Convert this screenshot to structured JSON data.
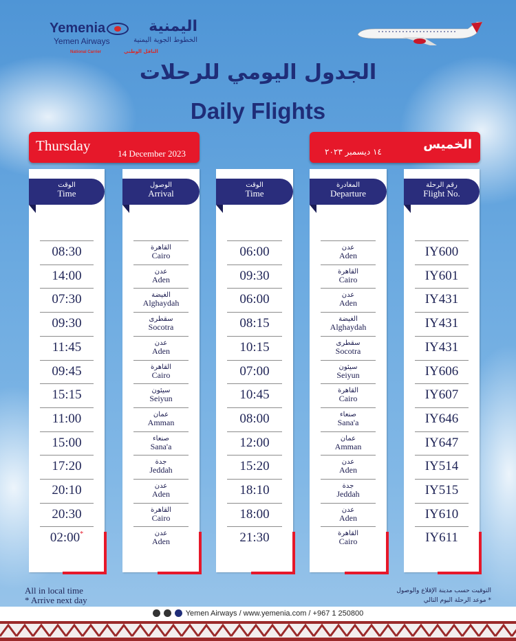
{
  "brand": {
    "name_en": "Yemenia",
    "name_ar": "اليمنية",
    "sub_en": "Yemen Airways",
    "sub_ar": "الخطوط الجوية اليمنية",
    "tag_en": "National Carrier",
    "tag_ar": "الناقل الوطني"
  },
  "title": {
    "ar": "الجدول اليومي للرحلات",
    "en": "Daily Flights"
  },
  "date": {
    "day_en": "Thursday",
    "date_en": "14 December 2023",
    "day_ar": "الخميس",
    "date_ar": "١٤ ديسمبر ٢٠٢٣"
  },
  "columns": {
    "arr_time": {
      "ar": "الوقت",
      "en": "Time"
    },
    "arrival": {
      "ar": "الوصول",
      "en": "Arrival"
    },
    "dep_time": {
      "ar": "الوقت",
      "en": "Time"
    },
    "departure": {
      "ar": "المغادرة",
      "en": "Departure"
    },
    "flight": {
      "ar": "رقم الرحلة",
      "en": "Flight No."
    }
  },
  "flights": [
    {
      "no": "IY600",
      "dep_ar": "عدن",
      "dep": "Aden",
      "dep_time": "06:00",
      "arr_ar": "القاهرة",
      "arr": "Cairo",
      "arr_time": "08:30"
    },
    {
      "no": "IY601",
      "dep_ar": "القاهرة",
      "dep": "Cairo",
      "dep_time": "09:30",
      "arr_ar": "عدن",
      "arr": "Aden",
      "arr_time": "14:00"
    },
    {
      "no": "IY431",
      "dep_ar": "عدن",
      "dep": "Aden",
      "dep_time": "06:00",
      "arr_ar": "الغيضة",
      "arr": "Alghaydah",
      "arr_time": "07:30"
    },
    {
      "no": "IY431",
      "dep_ar": "الغيضة",
      "dep": "Alghaydah",
      "dep_time": "08:15",
      "arr_ar": "سقطرى",
      "arr": "Socotra",
      "arr_time": "09:30"
    },
    {
      "no": "IY431",
      "dep_ar": "سقطرى",
      "dep": "Socotra",
      "dep_time": "10:15",
      "arr_ar": "عدن",
      "arr": "Aden",
      "arr_time": "11:45"
    },
    {
      "no": "IY606",
      "dep_ar": "سيئون",
      "dep": "Seiyun",
      "dep_time": "07:00",
      "arr_ar": "القاهرة",
      "arr": "Cairo",
      "arr_time": "09:45"
    },
    {
      "no": "IY607",
      "dep_ar": "القاهرة",
      "dep": "Cairo",
      "dep_time": "10:45",
      "arr_ar": "سيئون",
      "arr": "Seiyun",
      "arr_time": "15:15"
    },
    {
      "no": "IY646",
      "dep_ar": "صنعاء",
      "dep": "Sana'a",
      "dep_time": "08:00",
      "arr_ar": "عمان",
      "arr": "Amman",
      "arr_time": "11:00"
    },
    {
      "no": "IY647",
      "dep_ar": "عمان",
      "dep": "Amman",
      "dep_time": "12:00",
      "arr_ar": "صنعاء",
      "arr": "Sana'a",
      "arr_time": "15:00"
    },
    {
      "no": "IY514",
      "dep_ar": "عدن",
      "dep": "Aden",
      "dep_time": "15:20",
      "arr_ar": "جدة",
      "arr": "Jeddah",
      "arr_time": "17:20"
    },
    {
      "no": "IY515",
      "dep_ar": "جدة",
      "dep": "Jeddah",
      "dep_time": "18:10",
      "arr_ar": "عدن",
      "arr": "Aden",
      "arr_time": "20:10"
    },
    {
      "no": "IY610",
      "dep_ar": "عدن",
      "dep": "Aden",
      "dep_time": "18:00",
      "arr_ar": "القاهرة",
      "arr": "Cairo",
      "arr_time": "20:30"
    },
    {
      "no": "IY611",
      "dep_ar": "القاهرة",
      "dep": "Cairo",
      "dep_time": "21:30",
      "arr_ar": "عدن",
      "arr": "Aden",
      "arr_time": "02:00",
      "next_day": "*"
    }
  ],
  "notes": {
    "en": [
      "All in local time",
      "* Arrive next day"
    ],
    "ar": [
      "التوقيت حسب مدينة الإقلاع والوصول",
      "* موعد الرحلة اليوم التالي"
    ]
  },
  "contact": "Yemen Airways / www.yemenia.com / +967 1 250800",
  "colors": {
    "navy": "#1f2d78",
    "header": "#2a2d7c",
    "red": "#e6182a"
  }
}
